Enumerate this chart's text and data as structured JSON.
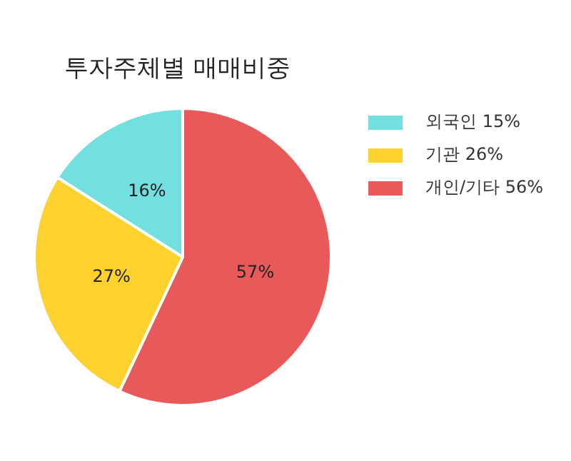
{
  "chart_data": {
    "type": "pie",
    "title": "투자주체별 매매비중",
    "categories": [
      "외국인 15%",
      "기관 26%",
      "개인/기타 56%"
    ],
    "values": [
      16,
      27,
      57
    ],
    "colors": [
      "#72e0e0",
      "#fdd22e",
      "#e85a5a"
    ],
    "value_labels": [
      "16%",
      "27%",
      "57%"
    ],
    "legend": "top right"
  }
}
